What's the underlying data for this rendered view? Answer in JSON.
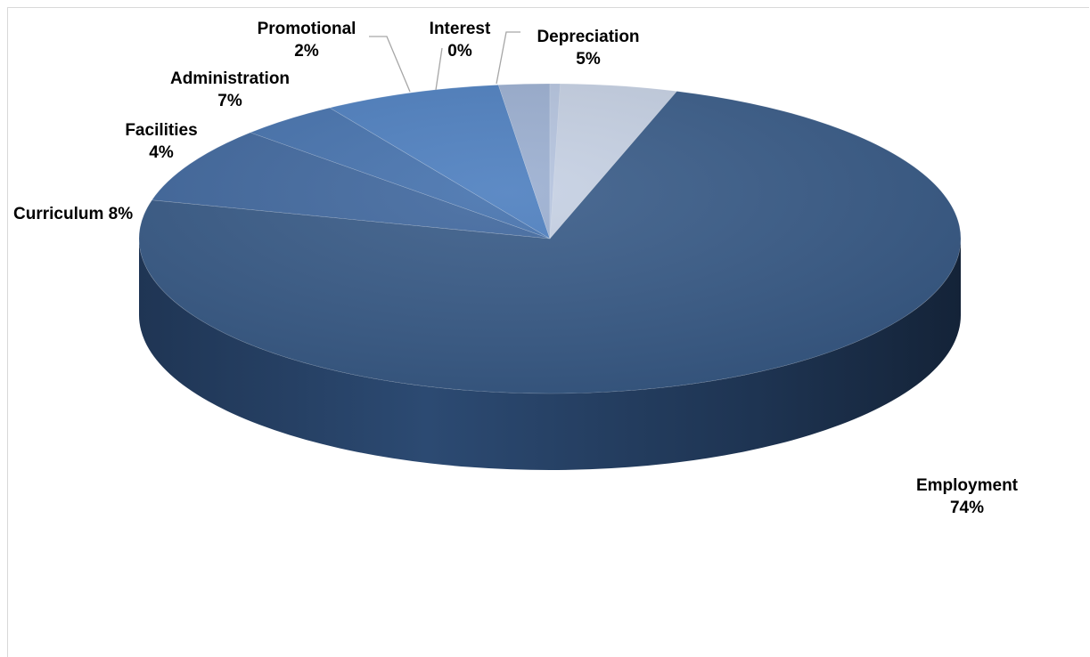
{
  "chart_data": {
    "type": "pie",
    "style": "3d",
    "categories": [
      "Depreciation",
      "Employment",
      "Curriculum",
      "Facilities",
      "Administration",
      "Promotional",
      "Interest"
    ],
    "values": [
      5,
      74,
      8,
      4,
      7,
      2,
      0
    ],
    "labels": [
      {
        "line1": "Depreciation",
        "line2": "5%"
      },
      {
        "line1": "Employment",
        "line2": "74%"
      },
      {
        "line1": "Curriculum 8%",
        "line2": ""
      },
      {
        "line1": "Facilities",
        "line2": "4%"
      },
      {
        "line1": "Administration",
        "line2": "7%"
      },
      {
        "line1": "Promotional",
        "line2": "2%"
      },
      {
        "line1": "Interest",
        "line2": "0%"
      }
    ],
    "colors": [
      "#c5d0e3",
      "#375a87",
      "#3f679e",
      "#4471ad",
      "#4c7ebf",
      "#9aaed0",
      "#b4c3de"
    ],
    "legend": "none",
    "title": ""
  }
}
